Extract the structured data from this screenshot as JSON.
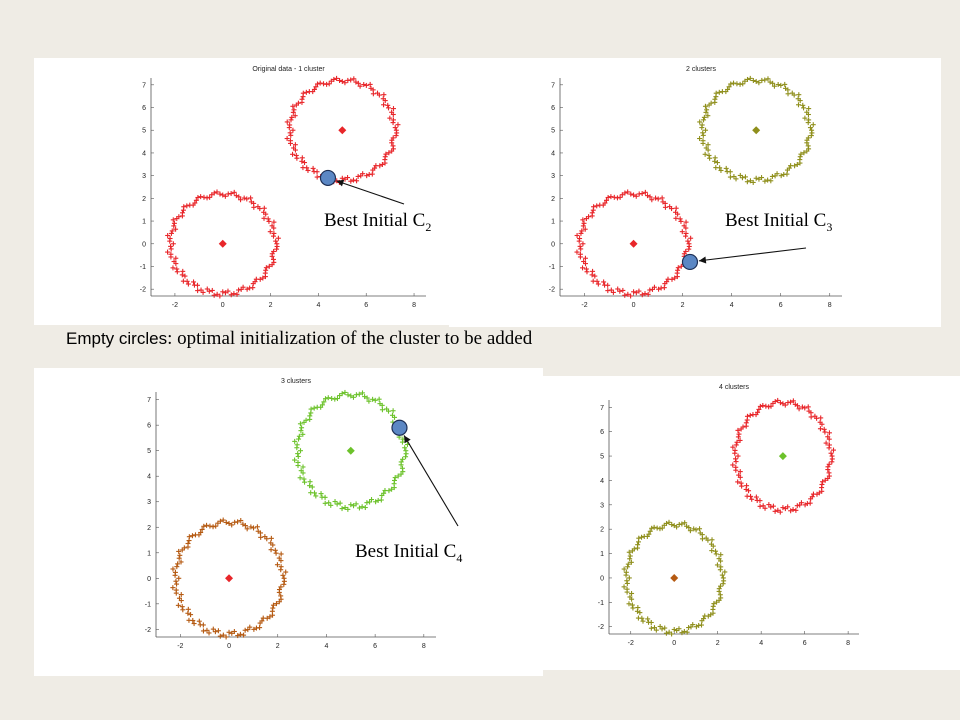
{
  "caption": {
    "lead": "Empty circles",
    "rest": ": optimal initialization of the cluster to be added"
  },
  "annotations": [
    {
      "text": "Best Initial C",
      "sub": "2"
    },
    {
      "text": "Best Initial C",
      "sub": "3"
    },
    {
      "text": "Best Initial C",
      "sub": "4"
    }
  ],
  "colors": {
    "red": "#e8262a",
    "olive": "#8f8f1c",
    "green": "#6cc22b",
    "orange": "#b55a12",
    "marker_fill": "#5b87c4",
    "background": "#efece5"
  },
  "chart_data": [
    {
      "type": "scatter",
      "title": "Original data - 1 cluster",
      "xlim": [
        -3,
        8.5
      ],
      "ylim": [
        -2.3,
        7.3
      ],
      "xticks": [
        -2,
        0,
        2,
        4,
        6,
        8
      ],
      "yticks": [
        -2,
        -1,
        0,
        1,
        2,
        3,
        4,
        5,
        6,
        7
      ],
      "series": [
        {
          "shape": "ring",
          "center": [
            0,
            0
          ],
          "radius": 2.2,
          "color": "#e8262a"
        },
        {
          "shape": "ring",
          "center": [
            5,
            5
          ],
          "radius": 2.2,
          "color": "#e8262a"
        }
      ],
      "centroids": [
        {
          "x": 0,
          "y": 0,
          "color": "#e8262a"
        },
        {
          "x": 5,
          "y": 5,
          "color": "#e8262a"
        }
      ],
      "initial_point": {
        "x": 4.4,
        "y": 2.9,
        "label_index": 0
      }
    },
    {
      "type": "scatter",
      "title": "2 clusters",
      "xlim": [
        -3,
        8.5
      ],
      "ylim": [
        -2.3,
        7.3
      ],
      "xticks": [
        -2,
        0,
        2,
        4,
        6,
        8
      ],
      "yticks": [
        -2,
        -1,
        0,
        1,
        2,
        3,
        4,
        5,
        6,
        7
      ],
      "series": [
        {
          "shape": "ring",
          "center": [
            0,
            0
          ],
          "radius": 2.2,
          "color": "#e8262a"
        },
        {
          "shape": "ring",
          "center": [
            5,
            5
          ],
          "radius": 2.2,
          "color": "#8f8f1c"
        }
      ],
      "centroids": [
        {
          "x": 0,
          "y": 0,
          "color": "#e8262a"
        },
        {
          "x": 5,
          "y": 5,
          "color": "#8f8f1c"
        }
      ],
      "initial_point": {
        "x": 2.3,
        "y": -0.8,
        "label_index": 1
      }
    },
    {
      "type": "scatter",
      "title": "3 clusters",
      "xlim": [
        -3,
        8.5
      ],
      "ylim": [
        -2.3,
        7.3
      ],
      "xticks": [
        -2,
        0,
        2,
        4,
        6,
        8
      ],
      "yticks": [
        -2,
        -1,
        0,
        1,
        2,
        3,
        4,
        5,
        6,
        7
      ],
      "series": [
        {
          "shape": "ring",
          "center": [
            0,
            0
          ],
          "radius": 2.2,
          "color": "#b55a12"
        },
        {
          "shape": "ring",
          "center": [
            5,
            5
          ],
          "radius": 2.2,
          "color": "#6cc22b"
        }
      ],
      "centroids": [
        {
          "x": 0,
          "y": 0,
          "color": "#e8262a"
        },
        {
          "x": 5,
          "y": 5,
          "color": "#6cc22b"
        }
      ],
      "initial_point": {
        "x": 7.0,
        "y": 5.9,
        "label_index": 2
      }
    },
    {
      "type": "scatter",
      "title": "4 clusters",
      "xlim": [
        -3,
        8.5
      ],
      "ylim": [
        -2.3,
        7.3
      ],
      "xticks": [
        -2,
        0,
        2,
        4,
        6,
        8
      ],
      "yticks": [
        -2,
        -1,
        0,
        1,
        2,
        3,
        4,
        5,
        6,
        7
      ],
      "series": [
        {
          "shape": "ring",
          "center": [
            0,
            0
          ],
          "radius": 2.2,
          "color": "#8f8f1c"
        },
        {
          "shape": "ring",
          "center": [
            5,
            5
          ],
          "radius": 2.2,
          "color": "#e8262a"
        }
      ],
      "centroids": [
        {
          "x": 0,
          "y": 0,
          "color": "#b55a12"
        },
        {
          "x": 5,
          "y": 5,
          "color": "#6cc22b"
        }
      ]
    }
  ]
}
